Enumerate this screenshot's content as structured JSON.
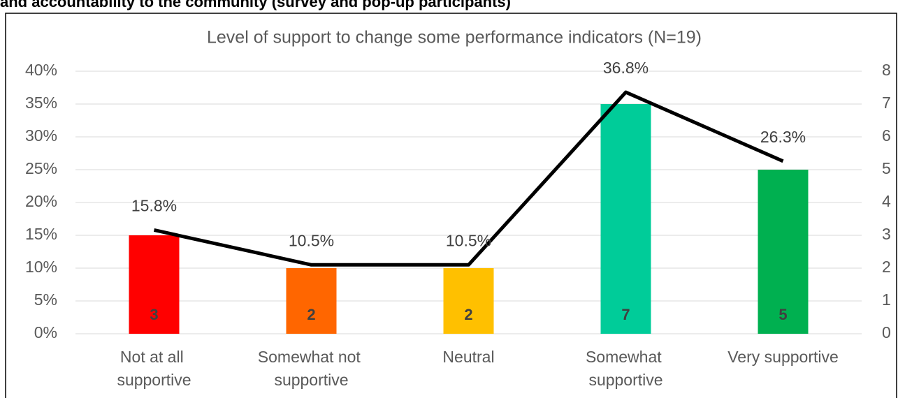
{
  "heading": "and accountability to the community (survey and pop-up participants)",
  "chart_data": {
    "type": "combo",
    "title": "Level of support to change some performance indicators (N=19)",
    "categories": [
      "Not at all supportive",
      "Somewhat not supportive",
      "Neutral",
      "Somewhat supportive",
      "Very supportive"
    ],
    "series": [
      {
        "type": "bar",
        "axis": "y2",
        "colors": [
          "#ff0000",
          "#ff6600",
          "#ffc000",
          "#00cc99",
          "#00b050"
        ],
        "values": [
          3,
          2,
          2,
          7,
          5
        ]
      },
      {
        "type": "line",
        "axis": "y",
        "color": "#000000",
        "values": [
          15.8,
          10.5,
          10.5,
          36.8,
          26.3
        ],
        "value_labels": [
          "15.8%",
          "10.5%",
          "10.5%",
          "36.8%",
          "26.3%"
        ]
      }
    ],
    "ylim": [
      0,
      40
    ],
    "yticks": [
      {
        "value": 0,
        "label": "0%"
      },
      {
        "value": 5,
        "label": "5%"
      },
      {
        "value": 10,
        "label": "10%"
      },
      {
        "value": 15,
        "label": "15%"
      },
      {
        "value": 20,
        "label": "20%"
      },
      {
        "value": 25,
        "label": "25%"
      },
      {
        "value": 30,
        "label": "30%"
      },
      {
        "value": 35,
        "label": "35%"
      },
      {
        "value": 40,
        "label": "40%"
      }
    ],
    "y2lim": [
      0,
      8
    ],
    "y2ticks": [
      0,
      1,
      2,
      3,
      4,
      5,
      6,
      7,
      8
    ],
    "grid": true
  }
}
